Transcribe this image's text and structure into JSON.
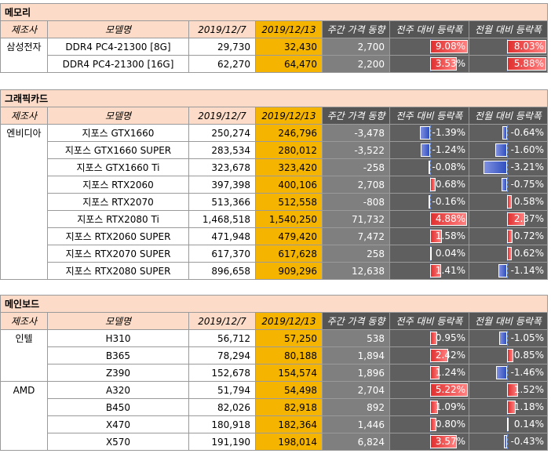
{
  "headers": {
    "maker": "제조사",
    "model": "모델명",
    "date_old": "2019/12/7",
    "date_new": "2019/12/13",
    "trend": "주간 가격 동향",
    "weekly_rate": "전주 대비 등락폭",
    "monthly_rate": "전월 대비 등락폭"
  },
  "sections": [
    {
      "title": "메모리",
      "rows": [
        {
          "maker": "삼성전자",
          "model": "DDR4 PC4-21300 [8G]",
          "old": "29,730",
          "new": "32,430",
          "trend": "2,700",
          "weekly": 9.08,
          "weekly_text": "9.08%",
          "monthly": 8.03,
          "monthly_text": "8.03%"
        },
        {
          "maker": "",
          "model": "DDR4 PC4-21300 [16G]",
          "old": "62,270",
          "new": "64,470",
          "trend": "2,200",
          "weekly": 3.53,
          "weekly_text": "3.53%",
          "monthly": 5.88,
          "monthly_text": "5.88%"
        }
      ]
    },
    {
      "title": "그래픽카드",
      "rows": [
        {
          "maker": "엔비디아",
          "model": "지포스 GTX1660",
          "old": "250,274",
          "new": "246,796",
          "trend": "-3,478",
          "weekly": -1.39,
          "weekly_text": "-1.39%",
          "monthly": -0.64,
          "monthly_text": "-0.64%"
        },
        {
          "maker": "",
          "model": "지포스 GTX1660 SUPER",
          "old": "283,534",
          "new": "280,012",
          "trend": "-3,522",
          "weekly": -1.24,
          "weekly_text": "-1.24%",
          "monthly": -1.6,
          "monthly_text": "-1.60%"
        },
        {
          "maker": "",
          "model": "지포스 GTX1660 Ti",
          "old": "323,678",
          "new": "323,420",
          "trend": "-258",
          "weekly": -0.08,
          "weekly_text": "-0.08%",
          "monthly": -3.21,
          "monthly_text": "-3.21%"
        },
        {
          "maker": "",
          "model": "지포스 RTX2060",
          "old": "397,398",
          "new": "400,106",
          "trend": "2,708",
          "weekly": 0.68,
          "weekly_text": "0.68%",
          "monthly": -0.75,
          "monthly_text": "-0.75%"
        },
        {
          "maker": "",
          "model": "지포스 RTX2070",
          "old": "513,366",
          "new": "512,558",
          "trend": "-808",
          "weekly": -0.16,
          "weekly_text": "-0.16%",
          "monthly": 0.58,
          "monthly_text": "0.58%"
        },
        {
          "maker": "",
          "model": "지포스 RTX2080 Ti",
          "old": "1,468,518",
          "new": "1,540,250",
          "trend": "71,732",
          "weekly": 4.88,
          "weekly_text": "4.88%",
          "monthly": 2.37,
          "monthly_text": "2.37%"
        },
        {
          "maker": "",
          "model": "지포스 RTX2060 SUPER",
          "old": "471,948",
          "new": "479,420",
          "trend": "7,472",
          "weekly": 1.58,
          "weekly_text": "1.58%",
          "monthly": 0.72,
          "monthly_text": "0.72%"
        },
        {
          "maker": "",
          "model": "지포스 RTX2070 SUPER",
          "old": "617,370",
          "new": "617,628",
          "trend": "258",
          "weekly": 0.04,
          "weekly_text": "0.04%",
          "monthly": 0.62,
          "monthly_text": "0.62%"
        },
        {
          "maker": "",
          "model": "지포스 RTX2080 SUPER",
          "old": "896,658",
          "new": "909,296",
          "trend": "12,638",
          "weekly": 1.41,
          "weekly_text": "1.41%",
          "monthly": -1.14,
          "monthly_text": "-1.14%"
        }
      ]
    },
    {
      "title": "메인보드",
      "rows": [
        {
          "maker": "인텔",
          "model": "H310",
          "old": "56,712",
          "new": "57,250",
          "trend": "538",
          "weekly": 0.95,
          "weekly_text": "0.95%",
          "monthly": -1.05,
          "monthly_text": "-1.05%"
        },
        {
          "maker": "",
          "model": "B365",
          "old": "78,294",
          "new": "80,188",
          "trend": "1,894",
          "weekly": 2.42,
          "weekly_text": "2.42%",
          "monthly": 0.85,
          "monthly_text": "0.85%"
        },
        {
          "maker": "",
          "model": "Z390",
          "old": "152,678",
          "new": "154,574",
          "trend": "1,896",
          "weekly": 1.24,
          "weekly_text": "1.24%",
          "monthly": -1.46,
          "monthly_text": "-1.46%"
        },
        {
          "maker": "AMD",
          "model": "A320",
          "old": "51,794",
          "new": "54,498",
          "trend": "2,704",
          "weekly": 5.22,
          "weekly_text": "5.22%",
          "monthly": 1.52,
          "monthly_text": "1.52%"
        },
        {
          "maker": "",
          "model": "B450",
          "old": "82,026",
          "new": "82,918",
          "trend": "892",
          "weekly": 1.09,
          "weekly_text": "1.09%",
          "monthly": 1.18,
          "monthly_text": "1.18%"
        },
        {
          "maker": "",
          "model": "X470",
          "old": "180,918",
          "new": "182,364",
          "trend": "1,446",
          "weekly": 0.8,
          "weekly_text": "0.80%",
          "monthly": 0.14,
          "monthly_text": "0.14%"
        },
        {
          "maker": "",
          "model": "X570",
          "old": "191,190",
          "new": "198,014",
          "trend": "6,824",
          "weekly": 3.57,
          "weekly_text": "3.57%",
          "monthly": -0.43,
          "monthly_text": "-0.43%"
        }
      ]
    }
  ]
}
